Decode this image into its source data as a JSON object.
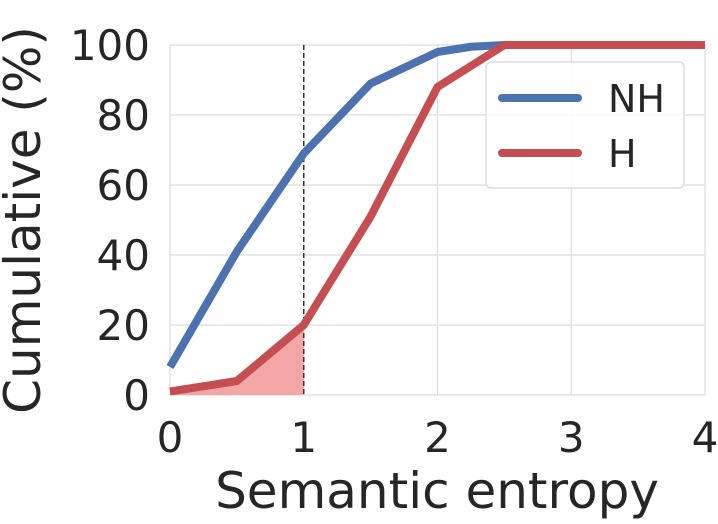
{
  "chart_data": {
    "type": "line",
    "xlabel": "Semantic entropy",
    "ylabel": "Cumulative (%)",
    "xlim": [
      0,
      4
    ],
    "ylim": [
      0,
      100
    ],
    "xticks": [
      "0",
      "1",
      "2",
      "3",
      "4"
    ],
    "yticks": [
      "0",
      "20",
      "40",
      "60",
      "80",
      "100"
    ],
    "grid": true,
    "legend_position": "top-right",
    "threshold_line": {
      "x": 1,
      "style": "dashed",
      "color": "#333333"
    },
    "shaded_region": {
      "series": "H",
      "x_range": [
        0,
        1
      ],
      "color": "#f4a6a6"
    },
    "series": [
      {
        "name": "NH",
        "color": "#4c72b0",
        "x": [
          0,
          0.5,
          1.0,
          1.5,
          2.0,
          2.25,
          2.5,
          3.0,
          3.5,
          4.0
        ],
        "y": [
          8,
          41,
          69,
          89,
          98,
          99.5,
          100,
          100,
          100,
          100
        ]
      },
      {
        "name": "H",
        "color": "#c44e52",
        "x": [
          0,
          0.5,
          1.0,
          1.5,
          2.0,
          2.5,
          3.0,
          3.5,
          4.0
        ],
        "y": [
          1,
          4,
          20,
          51,
          88,
          100,
          100,
          100,
          100
        ]
      }
    ]
  }
}
